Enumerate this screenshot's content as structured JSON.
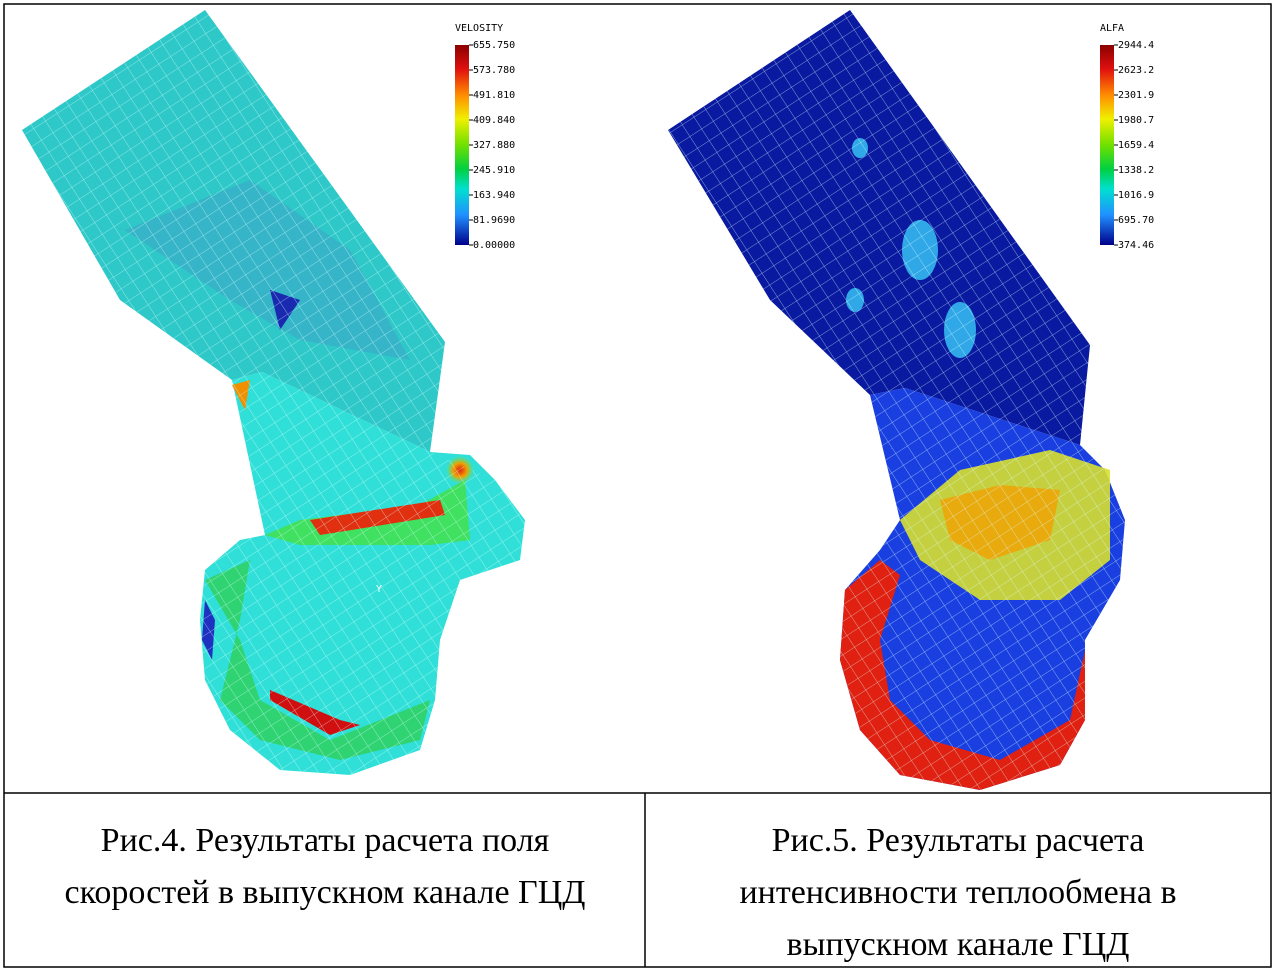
{
  "figures": [
    {
      "legend": {
        "title": "VELOSITY",
        "labels": [
          "655.750",
          "573.780",
          "491.810",
          "409.840",
          "327.880",
          "245.910",
          "163.940",
          "81.9690",
          "0.00000"
        ]
      },
      "axis_label": "Y",
      "caption": [
        "Рис.4. Результаты расчета поля",
        "скоростей в выпускном канале ГЦД"
      ]
    },
    {
      "legend": {
        "title": "ALFA",
        "labels": [
          "2944.4",
          "2623.2",
          "2301.9",
          "1980.7",
          "1659.4",
          "1338.2",
          "1016.9",
          "695.70",
          "374.46"
        ]
      },
      "caption": [
        "Рис.5. Результаты расчета",
        "интенсивности теплообмена в",
        "выпускном канале ГЦД"
      ]
    }
  ]
}
